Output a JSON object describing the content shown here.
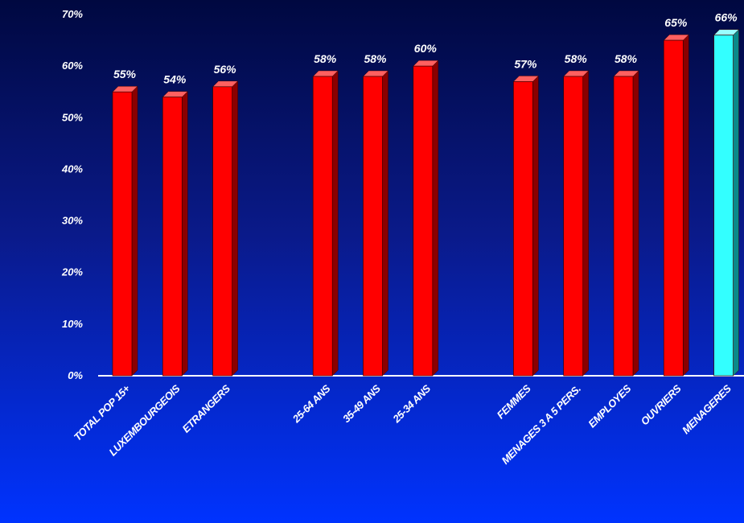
{
  "chart_data": {
    "type": "bar",
    "categories": [
      "TOTAL POP 15+",
      "LUXEMBOURGEOIS",
      "ETRANGERS",
      "",
      "25-64 ANS",
      "35-49 ANS",
      "25-34 ANS",
      "",
      "FEMMES",
      "MENAGES 3 A 5 PERS.",
      "EMPLOYES",
      "OUVRIERS",
      "MENAGERES"
    ],
    "values": [
      55,
      54,
      56,
      null,
      58,
      58,
      60,
      null,
      57,
      58,
      58,
      65,
      66
    ],
    "value_labels": [
      "55%",
      "54%",
      "56%",
      "",
      "58%",
      "58%",
      "60%",
      "",
      "57%",
      "58%",
      "58%",
      "65%",
      "66%"
    ],
    "ylim": [
      0,
      70
    ],
    "yticks": [
      0,
      10,
      20,
      30,
      40,
      50,
      60,
      70
    ],
    "ytick_labels": [
      "0%",
      "10%",
      "20%",
      "30%",
      "40%",
      "50%",
      "60%",
      "70%"
    ],
    "highlight_index": 12,
    "colors": {
      "bar": "#ff0000",
      "bar_dark": "#8a0000",
      "highlight": "#33ffff",
      "highlight_dark": "#0a8a8a",
      "axis": "#ffffff"
    }
  }
}
